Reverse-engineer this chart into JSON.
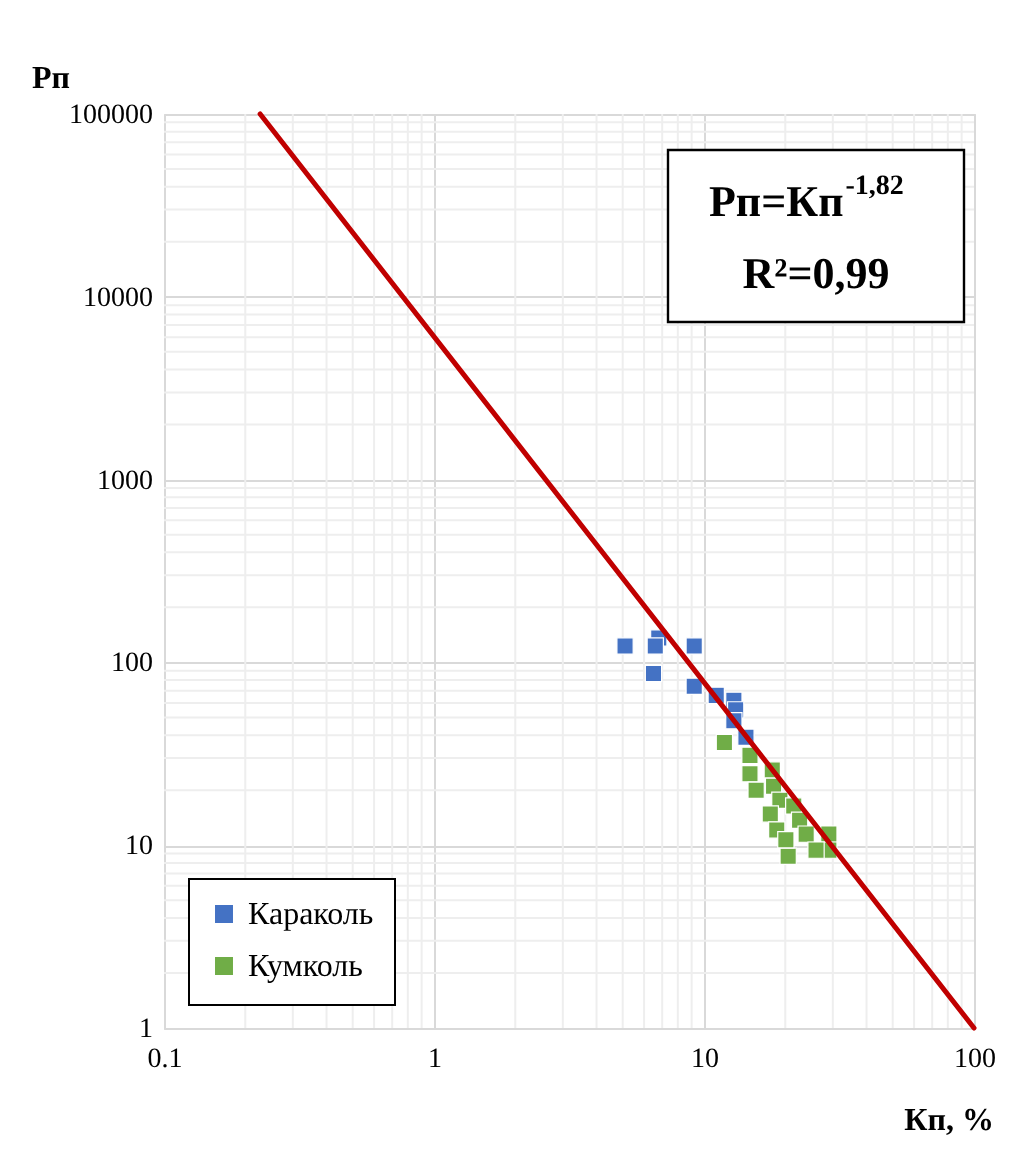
{
  "chart_data": {
    "type": "scatter",
    "xlabel": "Кп, %",
    "ylabel": "Рп",
    "log": "xy",
    "grid": true,
    "legend": "bottom left",
    "marker": "square",
    "xlim": [
      0.1,
      100
    ],
    "xticks": [
      0.1,
      1,
      10,
      100
    ],
    "ylim": [
      1,
      100000
    ],
    "yticks": [
      1,
      10,
      100,
      1000,
      10000,
      100000
    ],
    "annotations": [
      "Рп=Кп$^{-1,82}$",
      "R²=0,99"
    ],
    "series": [
      {
        "name": "Караколь",
        "color": "#4472c4",
        "x": [
          5.1,
          6.8,
          6.6,
          9.2,
          6.5,
          9.2,
          11.1,
          12.9,
          13.1,
          12.9,
          14.3
        ],
        "values": [
          123,
          136,
          123,
          123,
          87,
          74,
          66,
          62,
          55,
          48,
          39
        ]
      },
      {
        "name": "Кумколь",
        "color": "#70ad47",
        "x": [
          11.9,
          14.8,
          14.8,
          17.9,
          18.1,
          15.6,
          19.1,
          17.6,
          21.5,
          22.6,
          18.6,
          23.9,
          29.0,
          29.0,
          26.0,
          20.5,
          20.1
        ],
        "values": [
          36.5,
          31,
          24.6,
          25.8,
          21,
          20,
          17.6,
          14.8,
          16.4,
          13.7,
          12.1,
          11.5,
          11.5,
          9.4,
          9.4,
          8.7,
          10.7
        ]
      },
      {
        "type": "line",
        "color": "#c00000",
        "line_style": "solid",
        "marker": "none",
        "x": [
          0.227,
          100
        ],
        "values": [
          100000,
          1
        ]
      }
    ]
  }
}
